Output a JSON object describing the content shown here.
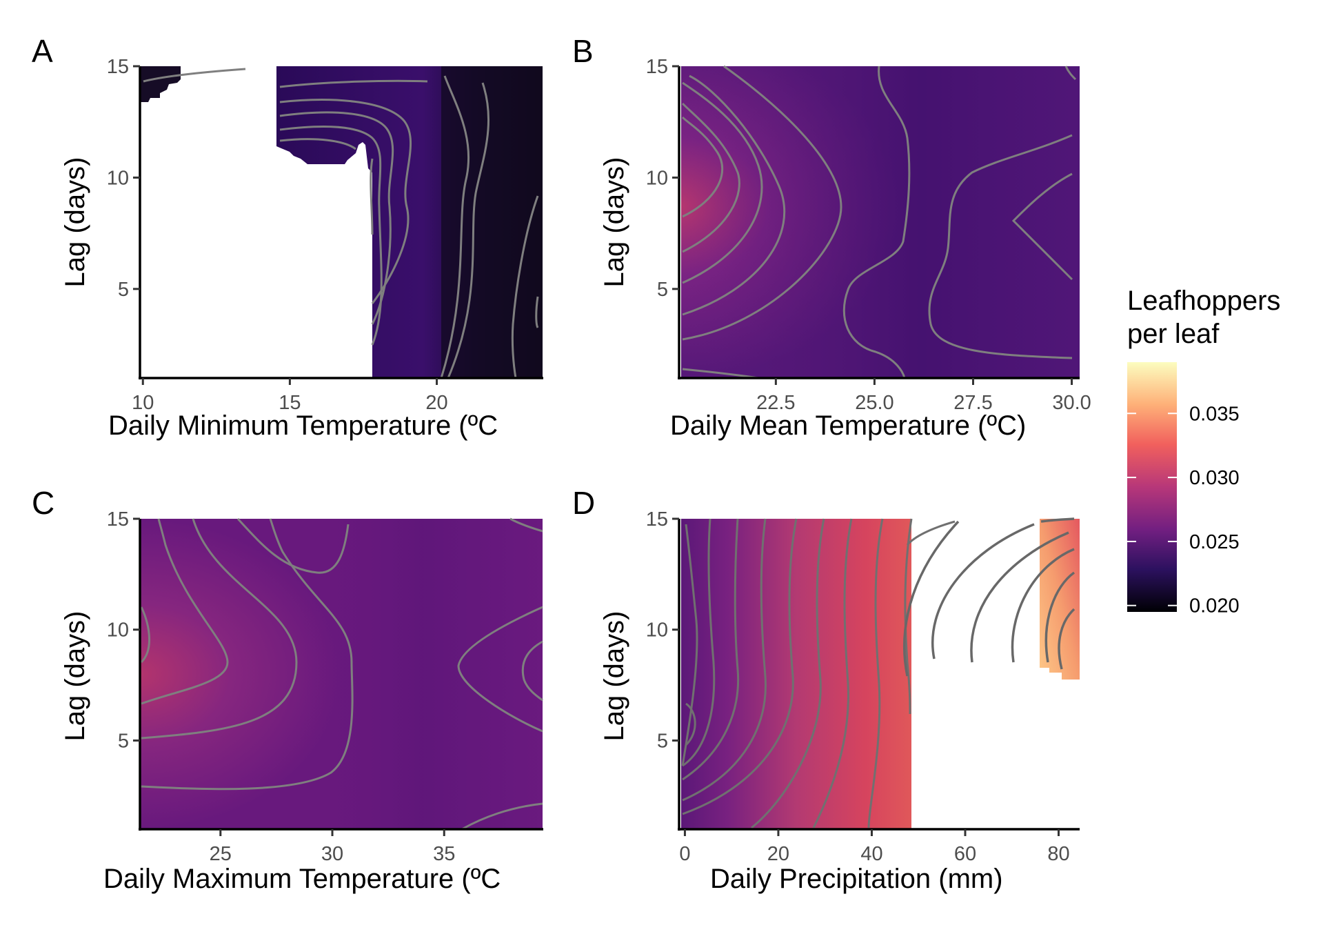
{
  "legend": {
    "title_line1": "Leafhoppers",
    "title_line2": "per leaf",
    "ticks": [
      "0.035",
      "0.030",
      "0.025",
      "0.020"
    ],
    "tick_values": [
      0.035,
      0.03,
      0.025,
      0.02
    ],
    "range": [
      0.0195,
      0.039
    ],
    "palette": [
      "#000004",
      "#2c115f",
      "#721f81",
      "#b73779",
      "#f1605d",
      "#feb078",
      "#fcfdbf"
    ]
  },
  "chart_data": [
    {
      "panel": "A",
      "type": "heatmap",
      "xlabel": "Daily Minimum Temperature (ºC",
      "ylabel": "Lag (days)",
      "xlim": [
        9.9,
        23.6
      ],
      "ylim": [
        1,
        15
      ],
      "xticks": [
        10,
        15,
        20
      ],
      "xtick_labels": [
        "10",
        "15",
        "20"
      ],
      "yticks": [
        5,
        10,
        15
      ],
      "ytick_labels": [
        "5",
        "10",
        "15"
      ],
      "description_values": {
        "low_region_mean": 0.0205,
        "peak": 0.0245
      },
      "contour_color": "#7f7f7f"
    },
    {
      "panel": "B",
      "type": "heatmap",
      "xlabel": "Daily Mean Temperature (ºC)",
      "ylabel": "Lag (days)",
      "xlim": [
        20.1,
        30.2
      ],
      "ylim": [
        1,
        15
      ],
      "xticks": [
        22.5,
        25.0,
        27.5,
        30.0
      ],
      "xtick_labels": [
        "22.5",
        "25.0",
        "27.5",
        "30.0"
      ],
      "yticks": [
        5,
        10,
        15
      ],
      "ytick_labels": [
        "5",
        "10",
        "15"
      ],
      "description_values": {
        "peak": 0.03,
        "base": 0.0245
      },
      "contour_color": "#7f7f7f"
    },
    {
      "panel": "C",
      "type": "heatmap",
      "xlabel": "Daily Maximum Temperature (ºC",
      "ylabel": "Lag (days)",
      "xlim": [
        21.4,
        39.4
      ],
      "ylim": [
        1,
        15
      ],
      "xticks": [
        25,
        30,
        35
      ],
      "xtick_labels": [
        "25",
        "30",
        "35"
      ],
      "yticks": [
        5,
        10,
        15
      ],
      "ytick_labels": [
        "5",
        "10",
        "15"
      ],
      "description_values": {
        "peak": 0.0295,
        "base": 0.026
      },
      "contour_color": "#7f7f7f"
    },
    {
      "panel": "D",
      "type": "heatmap",
      "xlabel": "Daily Precipitation (mm)",
      "ylabel": "Lag (days)",
      "xlim": [
        -0.8,
        84.5
      ],
      "ylim": [
        1,
        15
      ],
      "xticks": [
        0,
        20,
        40,
        60,
        80
      ],
      "xtick_labels": [
        "0",
        "20",
        "40",
        "60",
        "80"
      ],
      "yticks": [
        5,
        10,
        15
      ],
      "ytick_labels": [
        "5",
        "10",
        "15"
      ],
      "description_values": {
        "left": 0.0255,
        "mid": 0.032,
        "right_peak": 0.038
      },
      "contour_color": "#707070"
    }
  ]
}
